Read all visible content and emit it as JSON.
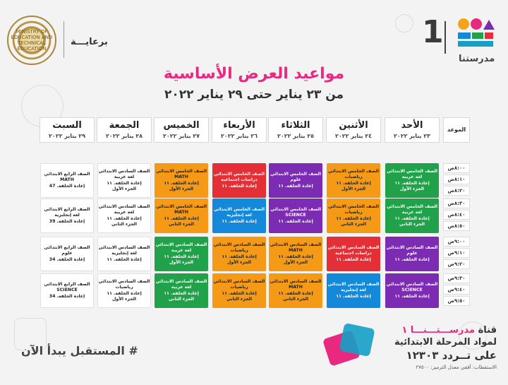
{
  "header": {
    "sponsor": "برعايـــة",
    "ministry_seal_text": "MINISTRY OF EDUCATION AND TECHNICAL EDUCATION",
    "channel_number": "1",
    "brand_name": "مدرستنا"
  },
  "title": "مواعيد العرض الأساسية",
  "subtitle": "من ٢٣ يناير حتى ٢٩ يناير ٢٠٢٢",
  "schedule": {
    "time_header": "الموعد",
    "days": [
      {
        "day": "الأحد",
        "date": "٢٣ يناير ٢٠٢٢"
      },
      {
        "day": "الأثنين",
        "date": "٢٤ يناير ٢٠٢٢"
      },
      {
        "day": "الثلاثاء",
        "date": "٢٥ يناير ٢٠٢٢"
      },
      {
        "day": "الأربعاء",
        "date": "٢٦ يناير ٢٠٢٢"
      },
      {
        "day": "الخميس",
        "date": "٢٧ يناير ٢٠٢٢"
      },
      {
        "day": "الجمعة",
        "date": "٢٨ يناير ٢٠٢٢"
      },
      {
        "day": "السبت",
        "date": "٢٩ يناير ٢٠٢٢"
      }
    ],
    "times": [
      "٨:٠٠ص",
      "٨:١٠ص",
      "٨:٢٠ص",
      "٨:٣٠ص",
      "٨:٤٠ص",
      "٨:٥٠ص",
      "٩:٠٠ص",
      "٩:١٠ص",
      "٩:٢٠ص",
      "٩:٣٠ص",
      "٩:٤٠ص",
      "٩:٥٠ص"
    ],
    "blocks": [
      [
        {
          "color": "green",
          "lines": [
            "الصف الخامس الابتدائي",
            "لغة عربية",
            "إعادة الحلقة. ١١",
            "الجزء الأول"
          ]
        },
        {
          "color": "green",
          "lines": [
            "الصف الخامس الابتدائي",
            "لغة عربية",
            "إعادة الحلقة. ١١",
            "الجزء الثاني"
          ]
        },
        {
          "color": "purple",
          "lines": [
            "الصف السادس الابتدائي",
            "علوم",
            "إعادة الحلقة. ١١"
          ]
        },
        {
          "color": "purple",
          "lines": [
            "الصف السادس الابتدائي",
            "SCIENCE",
            "إعادة الحلقة. ١١"
          ]
        }
      ],
      [
        {
          "color": "orange",
          "lines": [
            "الصف الخامس الابتدائي",
            "رياضيات",
            "إعادة الحلقة. ١١",
            "الجزء الأول"
          ]
        },
        {
          "color": "orange",
          "lines": [
            "الصف الخامس الابتدائي",
            "رياضيات",
            "إعادة الحلقة. ١١",
            "الجزء الثاني"
          ]
        },
        {
          "color": "red",
          "lines": [
            "الصف السادس الابتدائي",
            "دراسات اجتماعية",
            "إعادة الحلقة. ١١"
          ]
        },
        {
          "color": "blue",
          "lines": [
            "الصف السادس الابتدائي",
            "لغة إنجليزية",
            "إعادة الحلقة. ١١"
          ]
        }
      ],
      [
        {
          "color": "purple",
          "lines": [
            "الصف الخامس الابتدائي",
            "علوم",
            "إعادة الحلقة. ١١"
          ]
        },
        {
          "color": "purple",
          "lines": [
            "الصف الخامس الابتدائي",
            "SCIENCE",
            "إعادة الحلقة. ١١"
          ]
        },
        {
          "color": "orange",
          "lines": [
            "الصف السادس الابتدائي",
            "MATH",
            "إعادة الحلقة. ١١",
            "الجزء الأول"
          ]
        },
        {
          "color": "orange",
          "lines": [
            "الصف السادس الابتدائي",
            "MATH",
            "إعادة الحلقة. ١١",
            "الجزء الثاني"
          ]
        }
      ],
      [
        {
          "color": "red",
          "lines": [
            "الصف الخامس الابتدائي",
            "دراسات اجتماعية",
            "إعادة الحلقة. ١١"
          ]
        },
        {
          "color": "blue",
          "lines": [
            "الصف الخامس الابتدائي",
            "لغة إنجليزية",
            "إعادة الحلقة. ١١"
          ]
        },
        {
          "color": "orange",
          "lines": [
            "الصف السادس الابتدائي",
            "رياضيات",
            "إعادة الحلقة. ١١",
            "الجزء الأول"
          ]
        },
        {
          "color": "orange",
          "lines": [
            "الصف السادس الابتدائي",
            "رياضيات",
            "إعادة الحلقة. ١١",
            "الجزء الثاني"
          ]
        }
      ],
      [
        {
          "color": "orange",
          "lines": [
            "الصف الخامس الابتدائي",
            "MATH",
            "إعادة الحلقة. ١١",
            "الجزء الأول"
          ]
        },
        {
          "color": "orange",
          "lines": [
            "الصف الخامس الابتدائي",
            "MATH",
            "إعادة الحلقة. ١١",
            "الجزء الثاني"
          ]
        },
        {
          "color": "green",
          "lines": [
            "الصف السادس الابتدائي",
            "لغة عربية",
            "إعادة الحلقة. ١١",
            "الجزء الأول"
          ]
        },
        {
          "color": "green",
          "lines": [
            "الصف السادس الابتدائي",
            "لغة عربية",
            "إعادة الحلقة. ١١",
            "الجزء الثاني"
          ]
        }
      ],
      [
        {
          "color": "white",
          "lines": [
            "الصف السادس الابتدائي",
            "لغة عربية",
            "إعادة الحلقة. ١١",
            "الجزء الأول"
          ]
        },
        {
          "color": "white",
          "lines": [
            "الصف السادس الابتدائي",
            "لغة عربية",
            "إعادة الحلقة. ١١",
            "الجزء الثاني"
          ]
        },
        {
          "color": "white",
          "lines": [
            "الصف السادس الابتدائي",
            "لغة إنجليزية",
            "إعادة الحلقة. ١١"
          ]
        },
        {
          "color": "white",
          "lines": [
            "الصف السادس الابتدائي",
            "رياضيات",
            "إعادة الحلقة. ١١",
            "الجزء الأول"
          ]
        }
      ],
      [
        {
          "color": "white",
          "lines": [
            "الصف الرابع الابتدائي",
            "MATH",
            "إعادة الحلقة. 47"
          ]
        },
        {
          "color": "white",
          "lines": [
            "الصف الرابع الابتدائي",
            "لغة إنجليزية",
            "إعادة الحلقة. 39"
          ]
        },
        {
          "color": "white",
          "lines": [
            "الصف الرابع الابتدائي",
            "علوم",
            "إعادة الحلقة. 34"
          ]
        },
        {
          "color": "white",
          "lines": [
            "الصف الرابع الابتدائي",
            "SCIENCE",
            "إعادة الحلقة. 34"
          ]
        }
      ]
    ]
  },
  "colors": {
    "green": "#21a24a",
    "purple": "#7b2cb3",
    "blue": "#1488d9",
    "orange": "#f59a16",
    "red": "#e42f36",
    "accent": "#e8297f"
  },
  "footer": {
    "slogan": "# المستقبل يبدأ الآن",
    "channel_line1_prefix": "قناة",
    "channel_line1_name": "مدرســـتـــنـــا ١",
    "channel_line2": "لمواد المرحلة الابتدائية",
    "channel_line3": "على تــردد ١٢٣٠٣",
    "reception": "الاستقطاب: أفقي معدل الترميز: ٢٧٥٠٠"
  }
}
